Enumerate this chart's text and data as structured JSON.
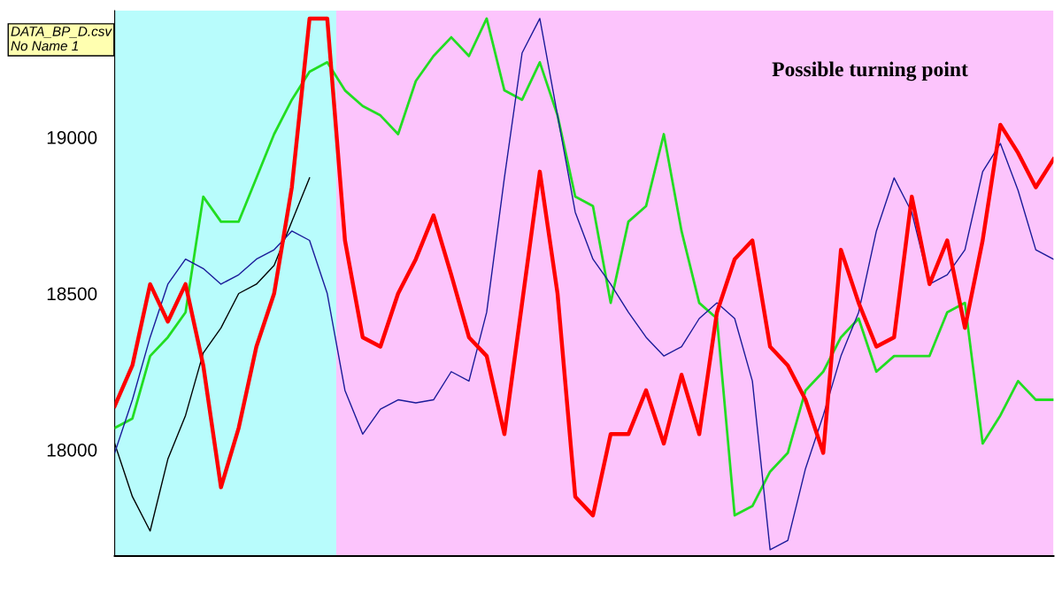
{
  "chart_data": {
    "type": "line",
    "categories": [
      null,
      null,
      null,
      null,
      null,
      null,
      null,
      null,
      null,
      null,
      null,
      null,
      null,
      null,
      null,
      null,
      null,
      null,
      null,
      null,
      null,
      null,
      null,
      null,
      null,
      null,
      null,
      null,
      null,
      null,
      null,
      null,
      null,
      null,
      null,
      null,
      null,
      null,
      null,
      null,
      null,
      null,
      null,
      null,
      null,
      null,
      null,
      null,
      null,
      null,
      null,
      null,
      null,
      null
    ],
    "series": [
      {
        "color": "#000000",
        "values": [
          18020,
          17850,
          17740,
          17970,
          18110,
          18310,
          18390,
          18500,
          18530,
          18590,
          18730,
          18870,
          null,
          null,
          null,
          null,
          null,
          null,
          null,
          null,
          null,
          null,
          null,
          null,
          null,
          null,
          null,
          null,
          null,
          null,
          null,
          null,
          null,
          null,
          null,
          null,
          null,
          null,
          null,
          null,
          null,
          null,
          null,
          null,
          null,
          null,
          null,
          null,
          null,
          null,
          null,
          null,
          null,
          null
        ]
      },
      {
        "color": "#22dd22",
        "values": [
          18070,
          18100,
          18300,
          18360,
          18440,
          18810,
          18730,
          18730,
          18870,
          19010,
          19120,
          19210,
          19240,
          19150,
          19100,
          19070,
          19010,
          19180,
          19260,
          19320,
          19260,
          19380,
          19150,
          19120,
          19240,
          19070,
          18810,
          18780,
          18470,
          18730,
          18780,
          19010,
          18700,
          18470,
          18420,
          17790,
          17820,
          17930,
          17990,
          18190,
          18250,
          18360,
          18420,
          18250,
          18300,
          18300,
          18300,
          18440,
          18470,
          18020,
          18110,
          18220,
          18160,
          18160
        ]
      },
      {
        "color": "#1a1a99",
        "values": [
          17990,
          18160,
          18360,
          18530,
          18610,
          18580,
          18530,
          18560,
          18610,
          18640,
          18700,
          18670,
          18500,
          18190,
          18050,
          18130,
          18160,
          18150,
          18160,
          18250,
          18220,
          18440,
          18870,
          19270,
          19380,
          19070,
          18760,
          18610,
          18530,
          18440,
          18360,
          18300,
          18330,
          18420,
          18470,
          18420,
          18220,
          17680,
          17710,
          17940,
          18110,
          18300,
          18440,
          18700,
          18870,
          18760,
          18530,
          18560,
          18640,
          18890,
          18980,
          18830,
          18640,
          18610
        ]
      },
      {
        "color": "#ff0000",
        "values": [
          18140,
          18270,
          18530,
          18410,
          18530,
          18270,
          17880,
          18070,
          18330,
          18500,
          18840,
          19380,
          19380,
          18670,
          18360,
          18330,
          18500,
          18610,
          18750,
          18560,
          18360,
          18300,
          18050,
          18470,
          18890,
          18500,
          17850,
          17790,
          18050,
          18050,
          18190,
          18020,
          18240,
          18050,
          18440,
          18610,
          18670,
          18330,
          18270,
          18160,
          17990,
          18640,
          18470,
          18330,
          18360,
          18810,
          18530,
          18670,
          18390,
          18670,
          19040,
          18950,
          18840,
          18930
        ]
      }
    ],
    "ylim": [
      17660,
      19405
    ],
    "yticks": [
      18000,
      18500,
      19000
    ],
    "tick_labels": "y",
    "annotations": [
      "Possible turning point",
      "DATA_BP_D.csv\nNo Name 1"
    ]
  }
}
